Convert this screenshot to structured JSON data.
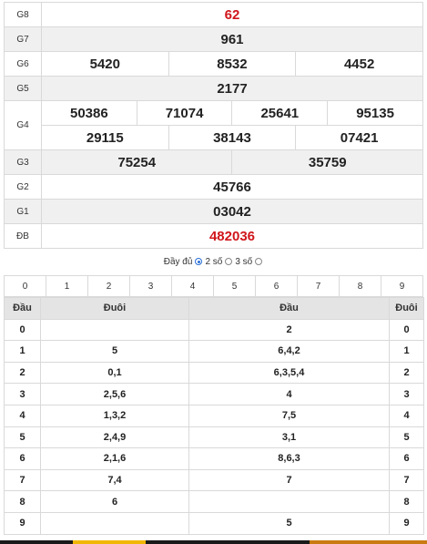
{
  "results": {
    "rows": [
      {
        "label": "G8",
        "numbers": [
          "62"
        ],
        "red": true,
        "gray": false
      },
      {
        "label": "G7",
        "numbers": [
          "961"
        ],
        "red": false,
        "gray": true
      },
      {
        "label": "G6",
        "numbers": [
          "5420",
          "8532",
          "4452"
        ],
        "red": false,
        "gray": false
      },
      {
        "label": "G5",
        "numbers": [
          "2177"
        ],
        "red": false,
        "gray": true
      },
      {
        "label": "G4",
        "numbers_top": [
          "50386",
          "71074",
          "25641",
          "95135"
        ],
        "numbers_bottom": [
          "29115",
          "38143",
          "07421"
        ],
        "red": false,
        "gray": false
      },
      {
        "label": "G3",
        "numbers": [
          "75254",
          "35759"
        ],
        "red": false,
        "gray": true
      },
      {
        "label": "G2",
        "numbers": [
          "45766"
        ],
        "red": false,
        "gray": false
      },
      {
        "label": "G1",
        "numbers": [
          "03042"
        ],
        "red": false,
        "gray": true
      },
      {
        "label": "ĐB",
        "numbers": [
          "482036"
        ],
        "red": true,
        "gray": false
      }
    ]
  },
  "options": {
    "full": "Đầy đủ",
    "two": "2 số",
    "three": "3 số",
    "selected": "full"
  },
  "digits": [
    "0",
    "1",
    "2",
    "3",
    "4",
    "5",
    "6",
    "7",
    "8",
    "9"
  ],
  "headtail": {
    "headers": [
      "Đầu",
      "Đuôi",
      "Đầu",
      "Đuôi"
    ],
    "rows": [
      {
        "dau": "0",
        "duoi": "",
        "dau2": "2",
        "duoi2": "0"
      },
      {
        "dau": "1",
        "duoi": "5",
        "dau2": "6,4,2",
        "duoi2": "1"
      },
      {
        "dau": "2",
        "duoi": "0,1",
        "dau2": "6,3,5,4",
        "duoi2": "2"
      },
      {
        "dau": "3",
        "duoi": "2,5,6",
        "dau2": "4",
        "duoi2": "3"
      },
      {
        "dau": "4",
        "duoi": "1,3,2",
        "dau2": "7,5",
        "duoi2": "4"
      },
      {
        "dau": "5",
        "duoi": "2,4,9",
        "dau2": "3,1",
        "duoi2": "5"
      },
      {
        "dau": "6",
        "duoi": "2,1,6",
        "dau2": "8,6,3",
        "duoi2": "6"
      },
      {
        "dau": "7",
        "duoi": "7,4",
        "dau2": "7",
        "duoi2": "7"
      },
      {
        "dau": "8",
        "duoi": "6",
        "dau2": "",
        "duoi2": "8"
      },
      {
        "dau": "9",
        "duoi": "",
        "dau2": "5",
        "duoi2": "9"
      }
    ]
  },
  "colors": {
    "accent_red": "#d0161b",
    "radio_blue": "#2a6fd6"
  }
}
